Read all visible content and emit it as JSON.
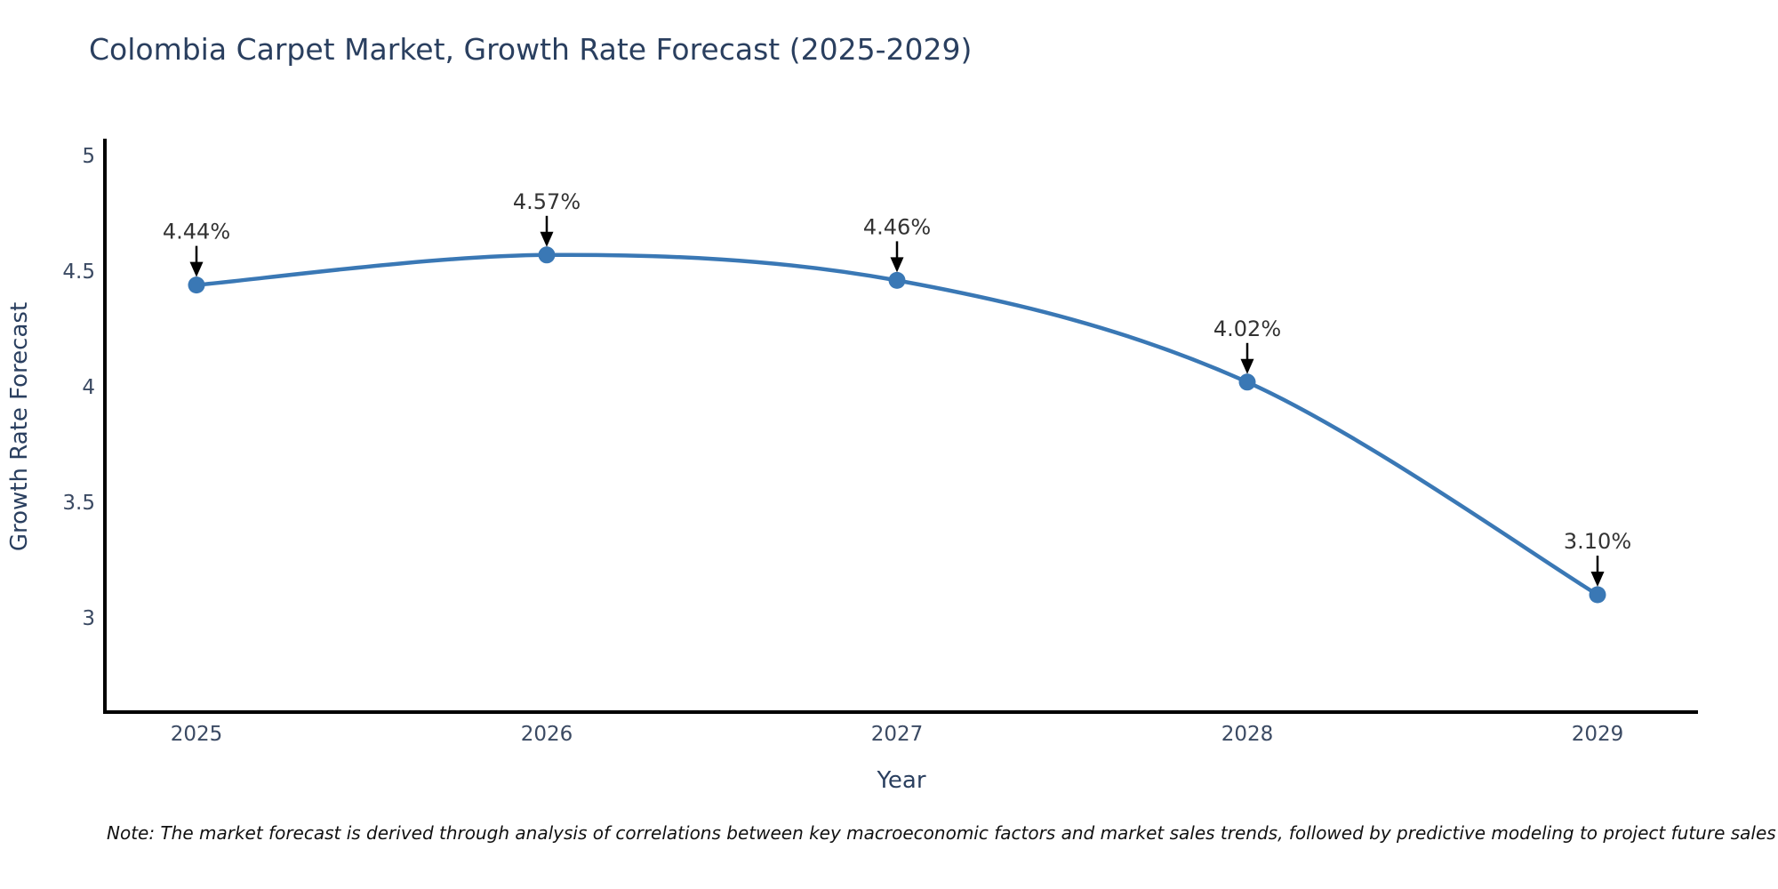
{
  "page": {
    "background": "#ffffff"
  },
  "title": "Colombia Carpet Market, Growth Rate Forecast (2025-2029)",
  "footnote": "Note: The market forecast is derived through analysis of correlations between key macroeconomic factors and market sales trends, followed by predictive modeling to project future sales",
  "chart_data": {
    "type": "line",
    "title": "Colombia Carpet Market, Growth Rate Forecast (2025-2029)",
    "xlabel": "Year",
    "ylabel": "Growth Rate Forecast",
    "categories": [
      "2025",
      "2026",
      "2027",
      "2028",
      "2029"
    ],
    "values": [
      4.44,
      4.57,
      4.46,
      4.02,
      3.1
    ],
    "data_labels": [
      "4.44%",
      "4.57%",
      "4.46%",
      "4.02%",
      "3.10%"
    ],
    "yticks": {
      "values": [
        5,
        4.5,
        4,
        3.5,
        3
      ],
      "labels": [
        "5",
        "4.5",
        "4",
        "3.5",
        "3"
      ]
    },
    "ylim": [
      2.6,
      5.06
    ],
    "line_shape": "spline",
    "grid": false,
    "legend": "none",
    "annotation_style": "black-arrow-down-to-point",
    "colors": {
      "line": "#3a78b5",
      "marker": "#3a78b5",
      "title": "#2a3f5f",
      "axis_label": "#2a3f5f",
      "tick": "#3b4a63",
      "annotation_text": "#333333",
      "annotation_arrow": "#000000",
      "axis_line": "#000000",
      "note": "#111111"
    }
  }
}
